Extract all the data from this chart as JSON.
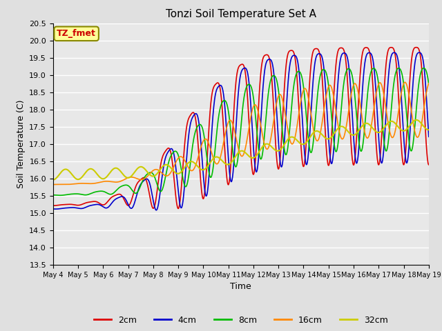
{
  "title": "Tonzi Soil Temperature Set A",
  "xlabel": "Time",
  "ylabel": "Soil Temperature (C)",
  "ylim": [
    13.5,
    20.5
  ],
  "background_color": "#e0e0e0",
  "plot_bg_color": "#e8e8e8",
  "grid_color": "white",
  "line_colors": {
    "2cm": "#dd0000",
    "4cm": "#0000cc",
    "8cm": "#00bb00",
    "16cm": "#ff8800",
    "32cm": "#cccc00"
  },
  "line_widths": {
    "2cm": 1.2,
    "4cm": 1.2,
    "8cm": 1.2,
    "16cm": 1.2,
    "32cm": 1.5
  },
  "legend_labels": [
    "2cm",
    "4cm",
    "8cm",
    "16cm",
    "32cm"
  ],
  "annotation_text": "TZ_fmet",
  "annotation_color": "#cc0000",
  "annotation_bg": "#ffff99",
  "xtick_labels": [
    "May 4",
    "May 5",
    "May 6",
    "May 7",
    "May 8",
    "May 9",
    "May 10",
    "May 11",
    "May 12",
    "May 13",
    "May 14",
    "May 15",
    "May 16",
    "May 17",
    "May 18",
    "May 19"
  ],
  "n_points_per_day": 96
}
